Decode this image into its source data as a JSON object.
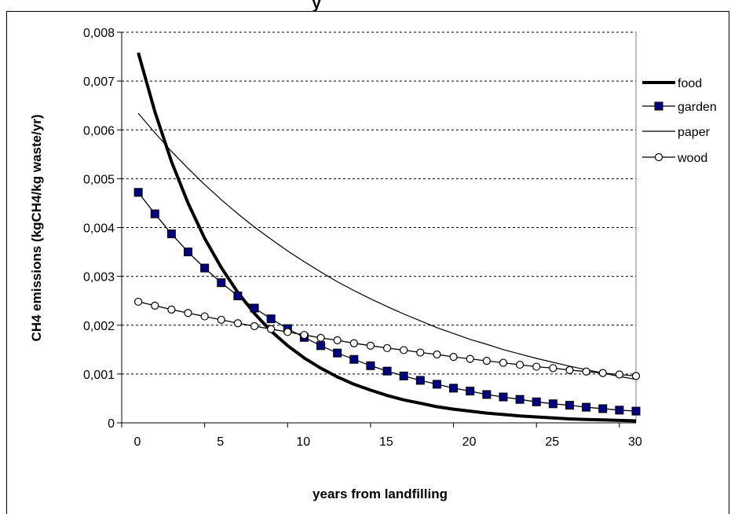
{
  "chart_data": {
    "type": "line",
    "title": "y",
    "xlabel": "years from landfilling",
    "ylabel": "CH4 emissions (kgCH4/kg waste/yr)",
    "xlim": [
      0,
      31
    ],
    "ylim": [
      0,
      0.008
    ],
    "xticks": [
      0,
      5,
      10,
      15,
      20,
      25,
      30
    ],
    "xtick_labels": [
      "0",
      "5",
      "10",
      "15",
      "20",
      "25",
      "30"
    ],
    "yticks": [
      0,
      0.001,
      0.002,
      0.003,
      0.004,
      0.005,
      0.006,
      0.007,
      0.008
    ],
    "ytick_labels": [
      "0",
      "0,001",
      "0,002",
      "0,003",
      "0,004",
      "0,005",
      "0,006",
      "0,007",
      "0,008"
    ],
    "grid": "horizontal dotted",
    "legend_position": "right",
    "x": [
      1,
      2,
      3,
      4,
      5,
      6,
      7,
      8,
      9,
      10,
      11,
      12,
      13,
      14,
      15,
      16,
      17,
      18,
      19,
      20,
      21,
      22,
      23,
      24,
      25,
      26,
      27,
      28,
      29,
      30,
      31
    ],
    "series": [
      {
        "name": "food",
        "style": "thick-line",
        "color": "#000000",
        "values": [
          0.00758,
          0.00637,
          0.00535,
          0.0045,
          0.00378,
          0.00318,
          0.00267,
          0.00224,
          0.00188,
          0.00158,
          0.00133,
          0.00112,
          0.00094,
          0.00079,
          0.00067,
          0.00056,
          0.00047,
          0.0004,
          0.00033,
          0.00028,
          0.00024,
          0.0002,
          0.00017,
          0.00014,
          0.00012,
          0.0001,
          8e-05,
          7e-05,
          6e-05,
          5e-05,
          4e-05
        ]
      },
      {
        "name": "garden",
        "style": "line-square-markers",
        "color": "#000080",
        "values": [
          0.00472,
          0.00428,
          0.00387,
          0.0035,
          0.00317,
          0.00287,
          0.0026,
          0.00235,
          0.00213,
          0.00193,
          0.00175,
          0.00158,
          0.00143,
          0.0013,
          0.00117,
          0.00106,
          0.00096,
          0.00087,
          0.00079,
          0.00071,
          0.00065,
          0.00058,
          0.00053,
          0.00048,
          0.00043,
          0.00039,
          0.00036,
          0.00032,
          0.00029,
          0.00026,
          0.00024
        ]
      },
      {
        "name": "paper",
        "style": "thin-line",
        "color": "#000000",
        "values": [
          0.00634,
          0.00594,
          0.00556,
          0.00521,
          0.00488,
          0.00457,
          0.00428,
          0.00401,
          0.00376,
          0.00352,
          0.0033,
          0.00309,
          0.00289,
          0.00271,
          0.00254,
          0.00238,
          0.00223,
          0.00209,
          0.00195,
          0.00183,
          0.00171,
          0.00161,
          0.0015,
          0.00141,
          0.00132,
          0.00124,
          0.00116,
          0.00109,
          0.00102,
          0.00095,
          0.00089
        ]
      },
      {
        "name": "wood",
        "style": "line-circle-markers",
        "color": "#000000",
        "values": [
          0.00248,
          0.0024,
          0.00232,
          0.00225,
          0.00218,
          0.00211,
          0.00204,
          0.00198,
          0.00192,
          0.00186,
          0.0018,
          0.00174,
          0.00169,
          0.00163,
          0.00158,
          0.00153,
          0.00149,
          0.00144,
          0.0014,
          0.00135,
          0.00131,
          0.00127,
          0.00123,
          0.00119,
          0.00115,
          0.00112,
          0.00108,
          0.00105,
          0.00102,
          0.00099,
          0.00096
        ]
      }
    ]
  }
}
